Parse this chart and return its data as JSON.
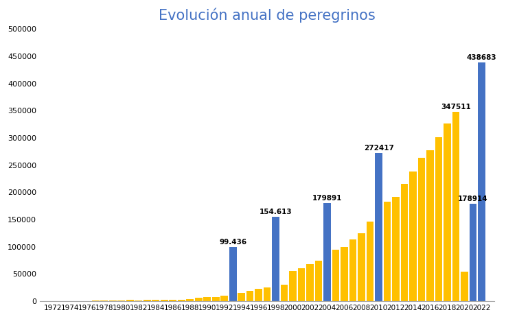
{
  "title": "Evolución anual de peregrinos",
  "title_color": "#4472c4",
  "years": [
    1972,
    1973,
    1974,
    1975,
    1976,
    1977,
    1978,
    1979,
    1980,
    1981,
    1982,
    1983,
    1984,
    1985,
    1986,
    1987,
    1988,
    1989,
    1990,
    1991,
    1992,
    1993,
    1994,
    1995,
    1996,
    1997,
    1998,
    1999,
    2000,
    2001,
    2002,
    2003,
    2004,
    2005,
    2006,
    2007,
    2008,
    2009,
    2010,
    2011,
    2012,
    2013,
    2014,
    2015,
    2016,
    2017,
    2018,
    2019,
    2020,
    2021,
    2022
  ],
  "values": [
    68,
    250,
    400,
    300,
    500,
    690,
    1000,
    1200,
    1500,
    2000,
    1900,
    2100,
    2500,
    2000,
    2500,
    3000,
    4000,
    5800,
    7000,
    8000,
    10000,
    99436,
    15500,
    19000,
    23000,
    25000,
    154613,
    30000,
    55000,
    61000,
    68000,
    74000,
    179891,
    94000,
    100000,
    114000,
    125000,
    146000,
    272417,
    183000,
    192000,
    216000,
    238000,
    263000,
    278000,
    301000,
    327000,
    347511,
    54000,
    178914,
    438683
  ],
  "blue_years": [
    1993,
    1998,
    2004,
    2010,
    2021,
    2022
  ],
  "blue_color": "#4472c4",
  "gold_color": "#ffc000",
  "annotated": {
    "1993": "99.436",
    "1998": "154.613",
    "2004": "179891",
    "2010": "272417",
    "2019": "347511",
    "2022": "438683",
    "2021": "178914"
  },
  "ylim": [
    0,
    500000
  ],
  "yticks": [
    0,
    50000,
    100000,
    150000,
    200000,
    250000,
    300000,
    350000,
    400000,
    450000,
    500000
  ],
  "background_color": "#ffffff",
  "figwidth": 7.37,
  "figheight": 4.65,
  "dpi": 100
}
